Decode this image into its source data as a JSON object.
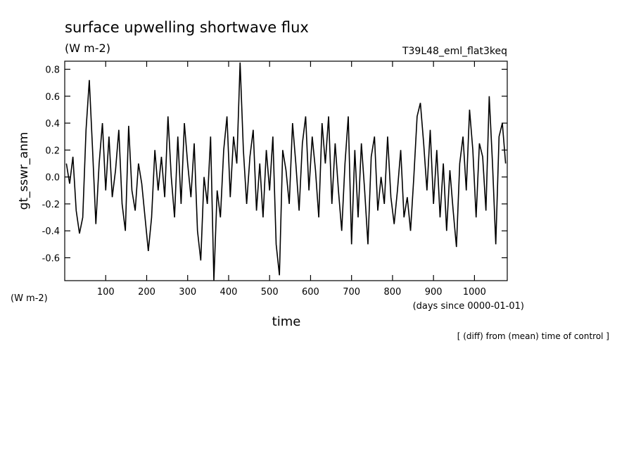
{
  "chart_data": {
    "type": "line",
    "title": "surface upwelling shortwave flux",
    "subtitle": "(W m-2)",
    "annotation": "T39L48_eml_flat3keq",
    "ylabel": "gt_sswr_anm",
    "yunits": "(W m-2)",
    "xlabel": "time",
    "xunits": "(days since 0000-01-01)",
    "note": "[ (diff) from (mean) time of control ]",
    "xlim": [
      0,
      1080
    ],
    "ylim": [
      -0.77,
      0.86
    ],
    "xticks": [
      100,
      200,
      300,
      400,
      500,
      600,
      700,
      800,
      900,
      1000
    ],
    "yticks": [
      -0.6,
      -0.4,
      -0.2,
      {
        "value": 0,
        "label": "0.0"
      },
      0.2,
      0.4,
      0.6,
      0.8
    ],
    "x": [
      4,
      12,
      20,
      28,
      36,
      44,
      52,
      60,
      68,
      76,
      84,
      92,
      100,
      108,
      116,
      124,
      132,
      140,
      148,
      156,
      164,
      172,
      180,
      188,
      196,
      204,
      212,
      220,
      228,
      236,
      244,
      252,
      260,
      268,
      276,
      284,
      292,
      300,
      308,
      316,
      324,
      332,
      340,
      348,
      356,
      364,
      372,
      380,
      388,
      396,
      404,
      412,
      420,
      428,
      436,
      444,
      452,
      460,
      468,
      476,
      484,
      492,
      500,
      508,
      516,
      524,
      532,
      540,
      548,
      556,
      564,
      572,
      580,
      588,
      596,
      604,
      612,
      620,
      628,
      636,
      644,
      652,
      660,
      668,
      676,
      684,
      692,
      700,
      708,
      716,
      724,
      732,
      740,
      748,
      756,
      764,
      772,
      780,
      788,
      796,
      804,
      812,
      820,
      828,
      836,
      844,
      852,
      860,
      868,
      876,
      884,
      892,
      900,
      908,
      916,
      924,
      932,
      940,
      948,
      956,
      964,
      972,
      980,
      988,
      996,
      1004,
      1012,
      1020,
      1028,
      1036,
      1044,
      1052,
      1060,
      1068,
      1076
    ],
    "series": [
      {
        "name": "gt_sswr_anm",
        "color": "#000000",
        "values": [
          0.1,
          -0.05,
          0.15,
          -0.25,
          -0.42,
          -0.3,
          0.35,
          0.72,
          0.2,
          -0.35,
          0.1,
          0.4,
          -0.1,
          0.3,
          -0.15,
          0.05,
          0.35,
          -0.2,
          -0.4,
          0.38,
          -0.1,
          -0.25,
          0.1,
          -0.05,
          -0.3,
          -0.55,
          -0.3,
          0.2,
          -0.1,
          0.15,
          -0.15,
          0.45,
          0.0,
          -0.3,
          0.3,
          -0.2,
          0.4,
          0.1,
          -0.15,
          0.25,
          -0.4,
          -0.62,
          0.0,
          -0.2,
          0.3,
          -0.77,
          -0.1,
          -0.3,
          0.2,
          0.45,
          -0.15,
          0.3,
          0.1,
          0.85,
          0.2,
          -0.2,
          0.15,
          0.35,
          -0.25,
          0.1,
          -0.3,
          0.2,
          -0.1,
          0.3,
          -0.5,
          -0.73,
          0.2,
          0.05,
          -0.2,
          0.4,
          0.1,
          -0.25,
          0.25,
          0.45,
          -0.1,
          0.3,
          0.05,
          -0.3,
          0.4,
          0.1,
          0.45,
          -0.2,
          0.25,
          -0.1,
          -0.4,
          0.1,
          0.45,
          -0.5,
          0.2,
          -0.3,
          0.25,
          -0.1,
          -0.5,
          0.15,
          0.3,
          -0.25,
          0.0,
          -0.2,
          0.3,
          -0.15,
          -0.35,
          -0.1,
          0.2,
          -0.3,
          -0.15,
          -0.4,
          0.0,
          0.45,
          0.55,
          0.25,
          -0.1,
          0.35,
          -0.2,
          0.2,
          -0.3,
          0.1,
          -0.4,
          0.05,
          -0.25,
          -0.52,
          0.1,
          0.3,
          -0.1,
          0.5,
          0.2,
          -0.3,
          0.25,
          0.15,
          -0.25,
          0.6,
          0.1,
          -0.5,
          0.3,
          0.4,
          0.1
        ]
      }
    ]
  }
}
